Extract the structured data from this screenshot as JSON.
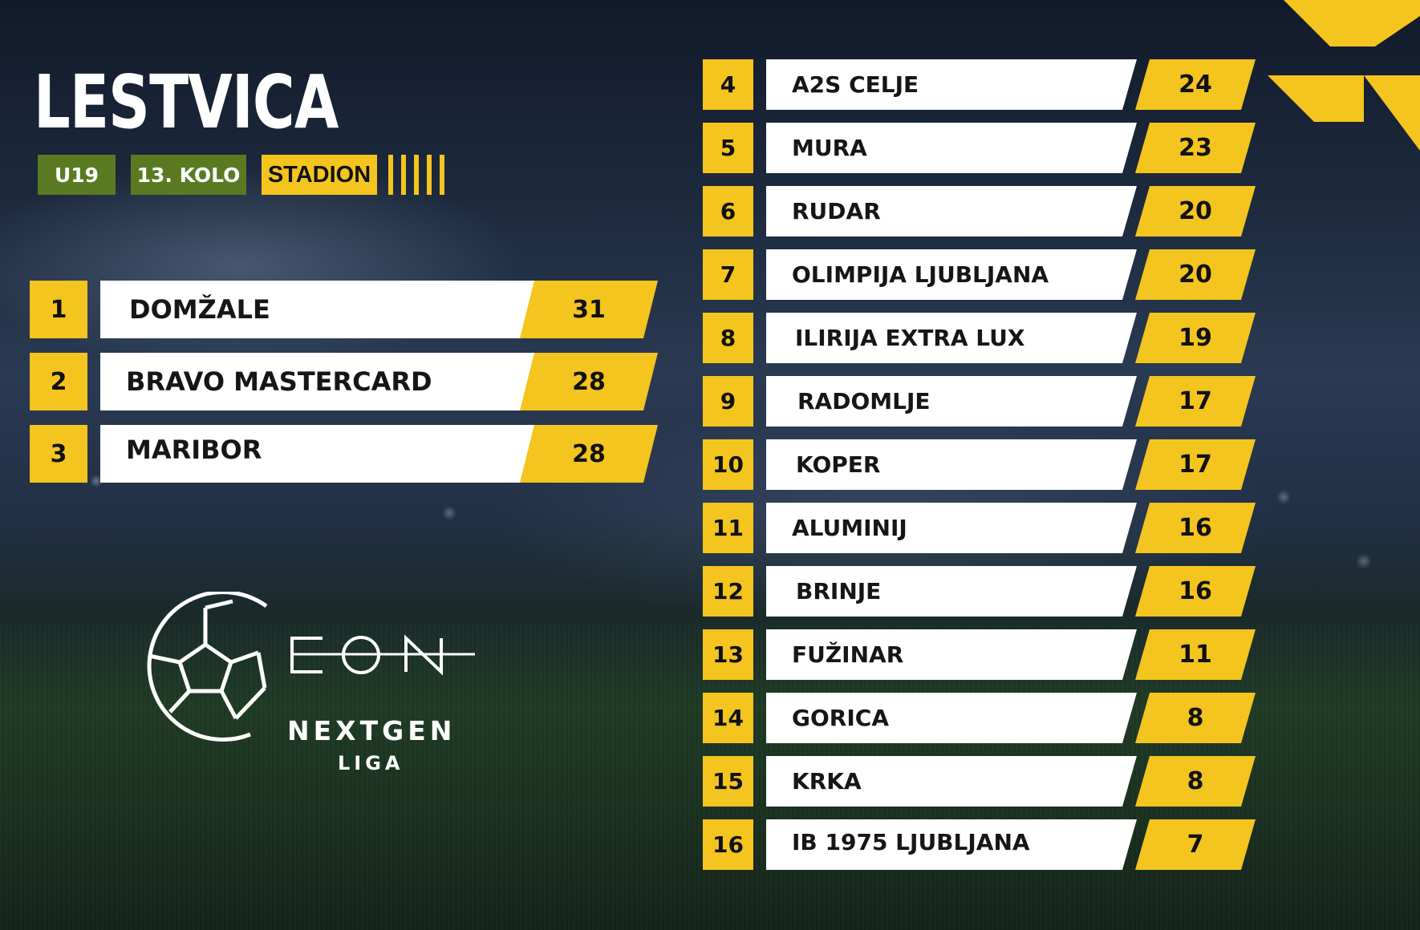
{
  "header": {
    "title": "LESTVICA",
    "tags": [
      "U19",
      "13. KOLO"
    ],
    "brand": "STADION"
  },
  "standings": [
    {
      "rank": "1",
      "team": "DOMŽALE",
      "points": "31"
    },
    {
      "rank": "2",
      "team": "BRAVO MASTERCARD",
      "points": "28"
    },
    {
      "rank": "3",
      "team": "MARIBOR",
      "points": "28"
    },
    {
      "rank": "4",
      "team": "A2S CELJE",
      "points": "24"
    },
    {
      "rank": "5",
      "team": "MURA",
      "points": "23"
    },
    {
      "rank": "6",
      "team": "RUDAR",
      "points": "20"
    },
    {
      "rank": "7",
      "team": "OLIMPIJA LJUBLJANA",
      "points": "20"
    },
    {
      "rank": "8",
      "team": "ILIRIJA EXTRA LUX",
      "points": "19"
    },
    {
      "rank": "9",
      "team": "RADOMLJE",
      "points": "17"
    },
    {
      "rank": "10",
      "team": "KOPER",
      "points": "17"
    },
    {
      "rank": "11",
      "team": "ALUMINIJ",
      "points": "16"
    },
    {
      "rank": "12",
      "team": "BRINJE",
      "points": "16"
    },
    {
      "rank": "13",
      "team": "FUŽINAR",
      "points": "11"
    },
    {
      "rank": "14",
      "team": "GORICA",
      "points": "8"
    },
    {
      "rank": "15",
      "team": "KRKA",
      "points": "8"
    },
    {
      "rank": "16",
      "team": "IB 1975 LJUBLJANA",
      "points": "7"
    }
  ],
  "logo": {
    "wordmark": "EON",
    "line1": "NEXTGEN",
    "line2": "LIGA",
    "icon": "soccer-ball-icon"
  },
  "colors": {
    "accent": "#f4c41f",
    "tag": "#5a7a22",
    "row": "#ffffff"
  }
}
